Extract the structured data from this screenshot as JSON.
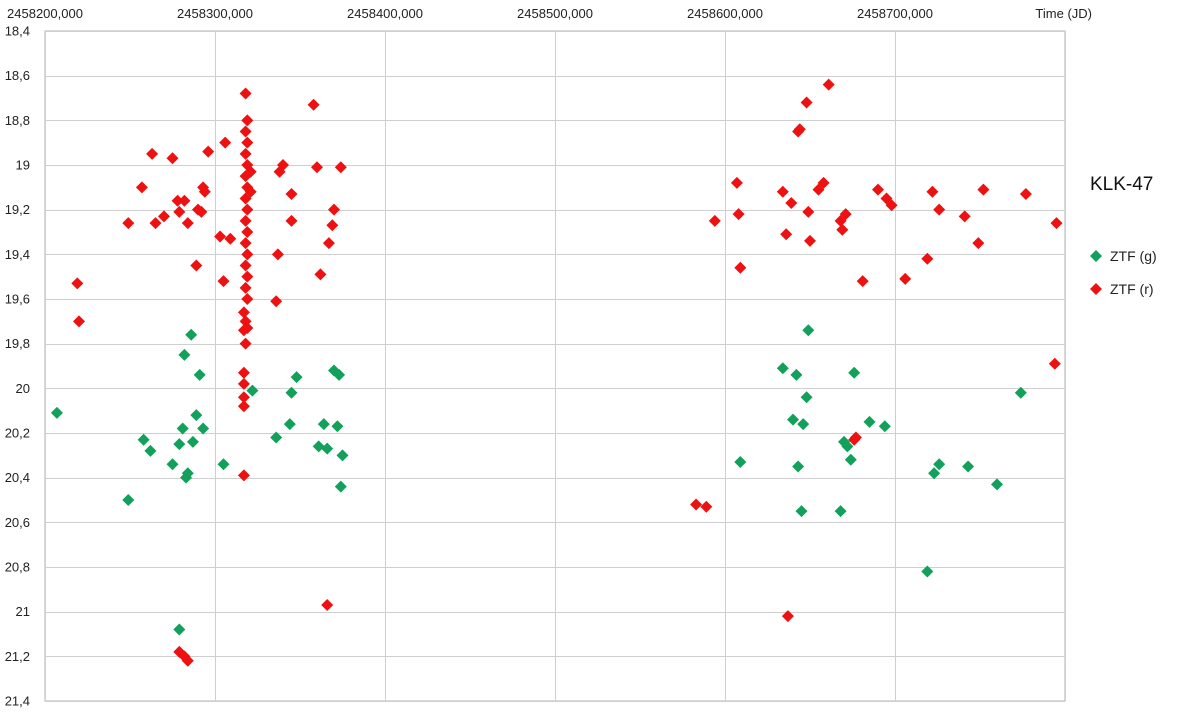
{
  "chart_data": {
    "type": "scatter",
    "title": "KLK-47",
    "xlabel": "Time (JD)",
    "ylabel": "",
    "xlim": [
      2458200,
      2458800
    ],
    "ylim": [
      18.4,
      21.4
    ],
    "y_inverted": true,
    "grid": true,
    "legend_position": "right",
    "x_tick_labels": [
      "2458200,000",
      "2458300,000",
      "2458400,000",
      "2458500,000",
      "2458600,000",
      "2458700,000"
    ],
    "y_tick_labels": [
      "18,4",
      "18,6",
      "18,8",
      "19",
      "19,2",
      "19,4",
      "19,6",
      "19,8",
      "20",
      "20,2",
      "20,4",
      "20,6",
      "20,8",
      "21",
      "21,2",
      "21,4"
    ],
    "series": [
      {
        "name": "ZTF (g)",
        "color": "#11a15a",
        "marker": "diamond",
        "points": [
          [
            2458207,
            20.11
          ],
          [
            2458249,
            20.5
          ],
          [
            2458258,
            20.23
          ],
          [
            2458262,
            20.28
          ],
          [
            2458275,
            20.34
          ],
          [
            2458279,
            20.25
          ],
          [
            2458281,
            20.18
          ],
          [
            2458282,
            19.85
          ],
          [
            2458283,
            20.4
          ],
          [
            2458284,
            20.38
          ],
          [
            2458286,
            19.76
          ],
          [
            2458287,
            20.24
          ],
          [
            2458289,
            20.12
          ],
          [
            2458291,
            19.94
          ],
          [
            2458293,
            20.18
          ],
          [
            2458279,
            21.08
          ],
          [
            2458305,
            20.34
          ],
          [
            2458322,
            20.01
          ],
          [
            2458336,
            20.22
          ],
          [
            2458344,
            20.16
          ],
          [
            2458345,
            20.02
          ],
          [
            2458348,
            19.95
          ],
          [
            2458361,
            20.26
          ],
          [
            2458364,
            20.16
          ],
          [
            2458366,
            20.27
          ],
          [
            2458370,
            19.92
          ],
          [
            2458372,
            20.17
          ],
          [
            2458373,
            19.94
          ],
          [
            2458374,
            20.44
          ],
          [
            2458375,
            20.3
          ],
          [
            2458609,
            20.33
          ],
          [
            2458634,
            19.91
          ],
          [
            2458640,
            20.14
          ],
          [
            2458642,
            19.94
          ],
          [
            2458643,
            20.35
          ],
          [
            2458645,
            20.55
          ],
          [
            2458646,
            20.16
          ],
          [
            2458648,
            20.04
          ],
          [
            2458649,
            19.74
          ],
          [
            2458668,
            20.55
          ],
          [
            2458670,
            20.24
          ],
          [
            2458672,
            20.26
          ],
          [
            2458674,
            20.32
          ],
          [
            2458676,
            19.93
          ],
          [
            2458685,
            20.15
          ],
          [
            2458694,
            20.17
          ],
          [
            2458719,
            20.82
          ],
          [
            2458723,
            20.38
          ],
          [
            2458726,
            20.34
          ],
          [
            2458743,
            20.35
          ],
          [
            2458760,
            20.43
          ],
          [
            2458774,
            20.02
          ]
        ]
      },
      {
        "name": "ZTF (r)",
        "color": "#ee1111",
        "marker": "diamond",
        "points": [
          [
            2458219,
            19.53
          ],
          [
            2458220,
            19.7
          ],
          [
            2458249,
            19.26
          ],
          [
            2458257,
            19.1
          ],
          [
            2458263,
            18.95
          ],
          [
            2458265,
            19.26
          ],
          [
            2458270,
            19.23
          ],
          [
            2458275,
            18.97
          ],
          [
            2458278,
            19.16
          ],
          [
            2458279,
            19.21
          ],
          [
            2458282,
            19.16
          ],
          [
            2458284,
            19.26
          ],
          [
            2458289,
            19.45
          ],
          [
            2458290,
            19.2
          ],
          [
            2458292,
            19.21
          ],
          [
            2458293,
            19.1
          ],
          [
            2458294,
            19.12
          ],
          [
            2458296,
            18.94
          ],
          [
            2458303,
            19.32
          ],
          [
            2458305,
            19.52
          ],
          [
            2458306,
            18.9
          ],
          [
            2458309,
            19.33
          ],
          [
            2458279,
            21.18
          ],
          [
            2458282,
            21.2
          ],
          [
            2458284,
            21.22
          ],
          [
            2458317,
            20.39
          ],
          [
            2458317,
            20.08
          ],
          [
            2458317,
            20.04
          ],
          [
            2458317,
            19.93
          ],
          [
            2458317,
            19.98
          ],
          [
            2458318,
            19.8
          ],
          [
            2458317,
            19.74
          ],
          [
            2458318,
            19.7
          ],
          [
            2458317,
            19.66
          ],
          [
            2458319,
            19.6
          ],
          [
            2458318,
            19.55
          ],
          [
            2458319,
            19.5
          ],
          [
            2458318,
            19.45
          ],
          [
            2458319,
            19.4
          ],
          [
            2458318,
            19.35
          ],
          [
            2458319,
            19.3
          ],
          [
            2458318,
            19.25
          ],
          [
            2458319,
            19.2
          ],
          [
            2458318,
            19.15
          ],
          [
            2458319,
            19.1
          ],
          [
            2458318,
            19.05
          ],
          [
            2458319,
            19.0
          ],
          [
            2458318,
            18.95
          ],
          [
            2458319,
            18.9
          ],
          [
            2458318,
            18.85
          ],
          [
            2458319,
            18.8
          ],
          [
            2458318,
            18.68
          ],
          [
            2458321,
            19.12
          ],
          [
            2458321,
            19.03
          ],
          [
            2458319,
            19.73
          ],
          [
            2458336,
            19.61
          ],
          [
            2458337,
            19.4
          ],
          [
            2458338,
            19.03
          ],
          [
            2458340,
            19.0
          ],
          [
            2458345,
            19.13
          ],
          [
            2458345,
            19.25
          ],
          [
            2458358,
            18.73
          ],
          [
            2458360,
            19.01
          ],
          [
            2458362,
            19.49
          ],
          [
            2458366,
            20.97
          ],
          [
            2458367,
            19.35
          ],
          [
            2458369,
            19.27
          ],
          [
            2458370,
            19.2
          ],
          [
            2458374,
            19.01
          ],
          [
            2458583,
            20.52
          ],
          [
            2458589,
            20.53
          ],
          [
            2458594,
            19.25
          ],
          [
            2458607,
            19.08
          ],
          [
            2458608,
            19.22
          ],
          [
            2458609,
            19.46
          ],
          [
            2458634,
            19.12
          ],
          [
            2458636,
            19.31
          ],
          [
            2458637,
            21.02
          ],
          [
            2458639,
            19.17
          ],
          [
            2458643,
            18.85
          ],
          [
            2458644,
            18.84
          ],
          [
            2458648,
            18.72
          ],
          [
            2458649,
            19.21
          ],
          [
            2458650,
            19.34
          ],
          [
            2458655,
            19.11
          ],
          [
            2458658,
            19.08
          ],
          [
            2458661,
            18.64
          ],
          [
            2458668,
            19.25
          ],
          [
            2458669,
            19.29
          ],
          [
            2458671,
            19.22
          ],
          [
            2458676,
            20.23
          ],
          [
            2458677,
            20.22
          ],
          [
            2458681,
            19.52
          ],
          [
            2458690,
            19.11
          ],
          [
            2458695,
            19.15
          ],
          [
            2458698,
            19.18
          ],
          [
            2458706,
            19.51
          ],
          [
            2458719,
            19.42
          ],
          [
            2458722,
            19.12
          ],
          [
            2458726,
            19.2
          ],
          [
            2458741,
            19.23
          ],
          [
            2458749,
            19.35
          ],
          [
            2458752,
            19.11
          ],
          [
            2458777,
            19.13
          ],
          [
            2458794,
            19.89
          ],
          [
            2458795,
            19.26
          ]
        ]
      }
    ]
  }
}
